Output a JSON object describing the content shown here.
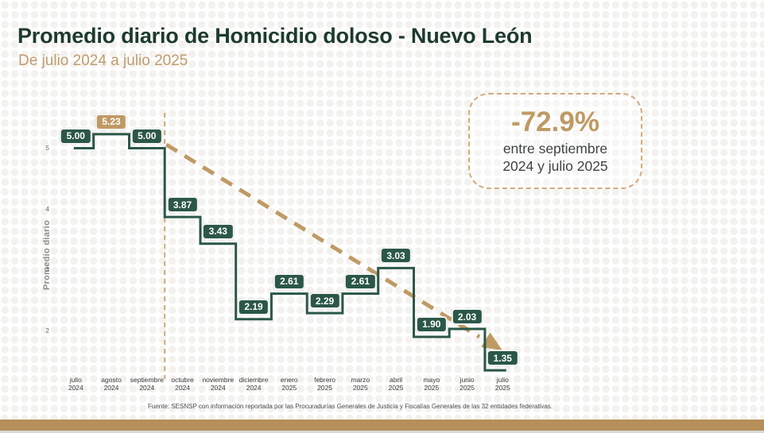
{
  "header": {
    "title": "Promedio diario de Homicidio doloso - Nuevo León",
    "subtitle": "De julio 2024 a julio 2025"
  },
  "callout": {
    "percentage": "-72.9%",
    "line1": "entre septiembre",
    "line2": "2024 y julio 2025"
  },
  "chart_data": {
    "type": "line",
    "subtype": "step",
    "title": "Promedio diario de Homicidio doloso - Nuevo León",
    "xlabel": "",
    "ylabel": "Promedio diario",
    "ylim": [
      1.0,
      5.6
    ],
    "yticks": [
      5,
      4,
      3,
      2
    ],
    "grid": false,
    "categories": [
      [
        "julio",
        "2024"
      ],
      [
        "agosto",
        "2024"
      ],
      [
        "septiembre",
        "2024"
      ],
      [
        "octubre",
        "2024"
      ],
      [
        "noviembre",
        "2024"
      ],
      [
        "diciembre",
        "2024"
      ],
      [
        "enero",
        "2025"
      ],
      [
        "febrero",
        "2025"
      ],
      [
        "marzo",
        "2025"
      ],
      [
        "abril",
        "2025"
      ],
      [
        "mayo",
        "2025"
      ],
      [
        "junio",
        "2025"
      ],
      [
        "julio",
        "2025"
      ]
    ],
    "values": [
      5.0,
      5.23,
      5.0,
      3.87,
      3.43,
      2.19,
      2.61,
      2.29,
      2.61,
      3.03,
      1.9,
      2.03,
      1.35
    ],
    "value_labels": [
      "5.00",
      "5.23",
      "5.00",
      "3.87",
      "3.43",
      "2.19",
      "2.61",
      "2.29",
      "2.61",
      "3.03",
      "1.90",
      "2.03",
      "1.35"
    ],
    "highlight_index": 1,
    "reference_index": 2,
    "trend_line": {
      "style": "dashed-with-arrow",
      "from": "septiembre 2024",
      "to": "julio 2025",
      "annotation": "-72.9%"
    }
  },
  "footer": {
    "source": "Fuente: SESNSP con información reportada por las Procuradurías Generales de Justicia y Fiscalías Generales de las 32 entidades federativas."
  },
  "colors": {
    "title_green": "#1d3a2e",
    "line_green": "#2b5748",
    "accent_tan": "#bf9a64",
    "subtitle_tan": "#c19b6d",
    "callout_border": "#d2ab7c",
    "bottom_bar": "#b5905a",
    "body_text": "#3e4446"
  }
}
